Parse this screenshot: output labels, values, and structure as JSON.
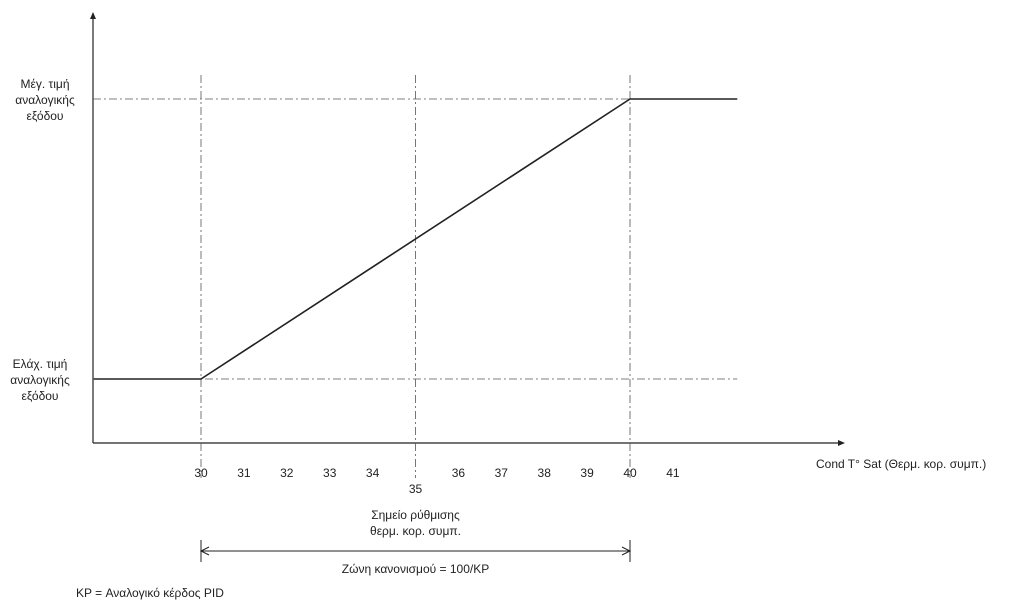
{
  "chart_data": {
    "type": "line",
    "series": [
      {
        "points": [
          {
            "x": 27.5,
            "y": "min"
          },
          {
            "x": 30,
            "y": "min"
          },
          {
            "x": 40,
            "y": "max"
          },
          {
            "x": 42.5,
            "y": "max"
          }
        ]
      }
    ],
    "x_ticks": [
      30,
      31,
      32,
      33,
      34,
      35,
      36,
      37,
      38,
      39,
      40,
      41
    ],
    "xlabel": "Cond T° Sat (Θερμ. κορ. συμπ.)",
    "y_labels": {
      "max": [
        "Μέγ. τιμή",
        "αναλογικής",
        "εξόδου"
      ],
      "min": [
        "Ελάχ. τιμή",
        "αναλογικής",
        "εξόδου"
      ]
    },
    "setpoint": {
      "x": 35,
      "label_lines": [
        "Σημείο ρύθμισης",
        "θερμ. κορ. συμπ."
      ]
    },
    "zone": {
      "from": 30,
      "to": 40,
      "label": "Ζώνη κανονισμού = 100/KP"
    },
    "note": "KP = Αναλογικό κέρδος PID",
    "grid": false,
    "colors": {
      "line": "#222222",
      "guide": "#555555",
      "text": "#222222"
    }
  }
}
